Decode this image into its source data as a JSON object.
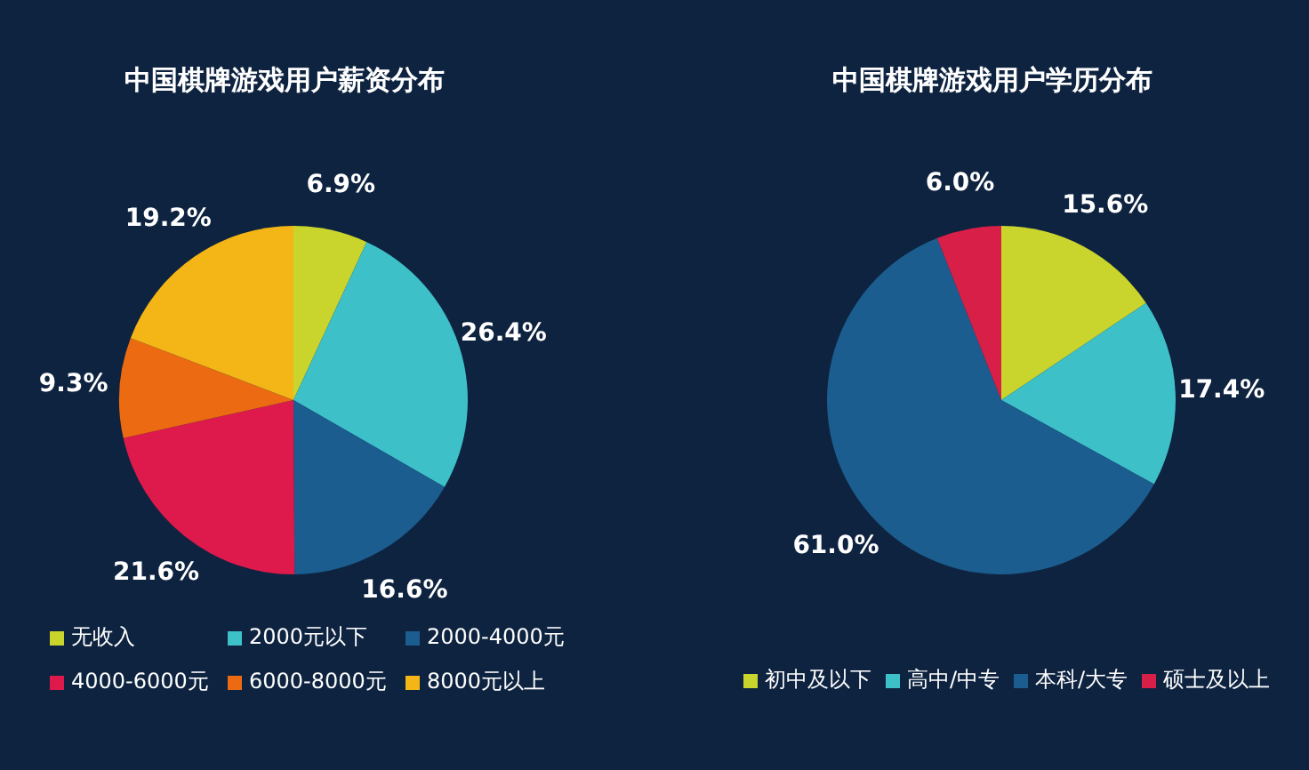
{
  "chart_data": [
    {
      "type": "pie",
      "title": "中国棋牌游戏用户薪资分布",
      "categories": [
        "无收入",
        "2000元以下",
        "2000-4000元",
        "4000-6000元",
        "6000-8000元",
        "8000元以上"
      ],
      "values": [
        6.9,
        26.4,
        16.6,
        21.6,
        9.3,
        19.2
      ],
      "value_labels": [
        "6.9%",
        "26.4%",
        "16.6%",
        "21.6%",
        "9.3%",
        "19.2%"
      ],
      "colors": [
        "#c9d52c",
        "#3ec0c8",
        "#1b5d8e",
        "#dd1a4b",
        "#ec6b12",
        "#f4b516"
      ],
      "legend": "bottom"
    },
    {
      "type": "pie",
      "title": "中国棋牌游戏用户学历分布",
      "categories": [
        "初中及以下",
        "高中/中专",
        "本科/大专",
        "硕士及以上"
      ],
      "values": [
        15.6,
        17.4,
        61.0,
        6.0
      ],
      "value_labels": [
        "15.6%",
        "17.4%",
        "61.0%",
        "6.0%"
      ],
      "colors": [
        "#c9d52c",
        "#3ec0c8",
        "#1b5d8e",
        "#d81f48"
      ],
      "legend": "bottom"
    }
  ]
}
